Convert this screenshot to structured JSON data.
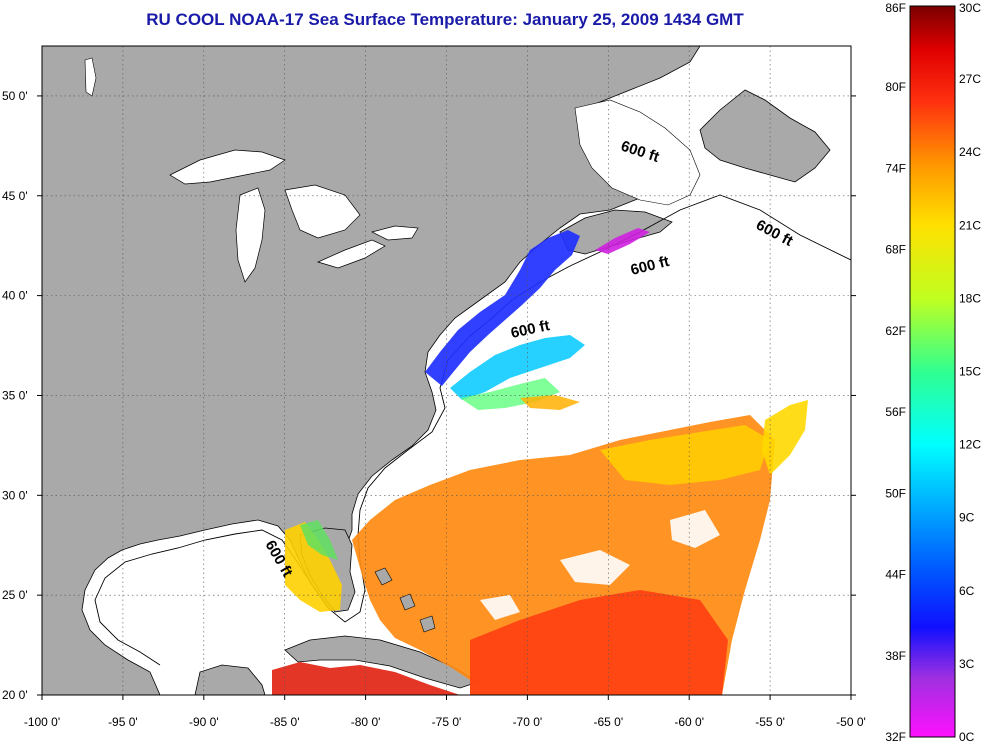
{
  "title": "RU COOL  NOAA-17  Sea Surface Temperature:  January 25, 2009 1434 GMT",
  "map": {
    "lon_range": [
      -100,
      -50
    ],
    "lat_range": [
      20,
      52.5
    ],
    "lon_ticks": [
      "-100 0'",
      "-95 0'",
      "-90 0'",
      "-85 0'",
      "-80 0'",
      "-75 0'",
      "-70 0'",
      "-65 0'",
      "-60 0'",
      "-55 0'",
      "-50 0'"
    ],
    "lat_ticks": [
      "50 0'",
      "45 0'",
      "40 0'",
      "35 0'",
      "30 0'",
      "25 0'",
      "20 0'"
    ],
    "land_color": "#a9a9a9",
    "grid": "dotted",
    "contour_labels": [
      "600 ft",
      "600 ft",
      "600 ft",
      "600 ft",
      "600 ft"
    ]
  },
  "colorbar": {
    "fahrenheit_labels": [
      "86F",
      "80F",
      "74F",
      "68F",
      "62F",
      "56F",
      "50F",
      "44F",
      "38F",
      "32F"
    ],
    "celsius_labels": [
      "30C",
      "27C",
      "24C",
      "21C",
      "18C",
      "15C",
      "12C",
      "9C",
      "6C",
      "3C",
      "0C"
    ],
    "range_c": [
      0,
      30
    ]
  }
}
